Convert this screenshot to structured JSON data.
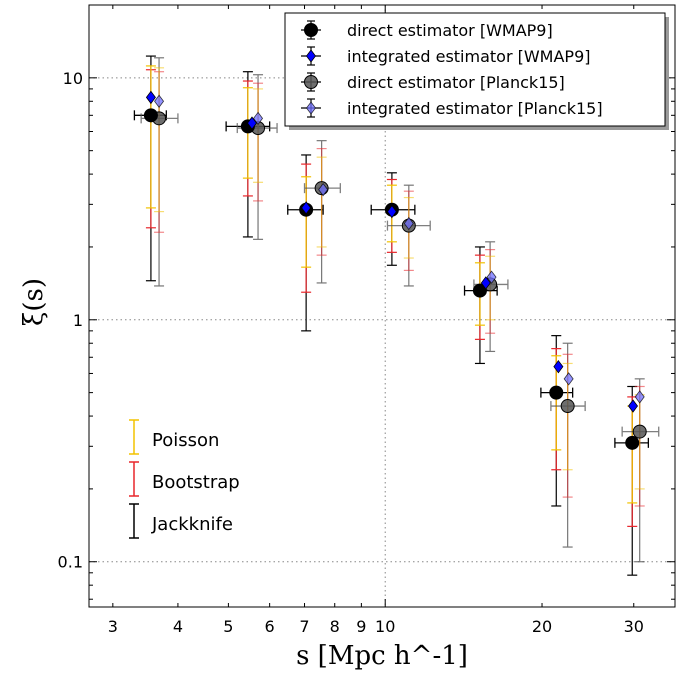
{
  "chart_data": {
    "type": "scatter",
    "title": "",
    "xlabel": "s [Mpc h^-1]",
    "ylabel": "ξ(s)",
    "x_scale": "log",
    "y_scale": "log",
    "xlim": [
      2.7,
      36
    ],
    "ylim": [
      0.065,
      20
    ],
    "x_ticks": [
      3,
      4,
      5,
      6,
      7,
      8,
      9,
      10,
      20,
      30
    ],
    "x_tick_labels": [
      "3",
      "4",
      "5",
      "6",
      "7",
      "8",
      "9",
      "10",
      "20",
      "30"
    ],
    "y_ticks": [
      0.1,
      1,
      10
    ],
    "y_tick_labels": [
      "0.1",
      "1",
      "10"
    ],
    "grid": "dotted at major ticks",
    "legend_position": "top-right",
    "series": [
      {
        "name": "direct estimator [WMAP9]",
        "marker": "circle",
        "color": "#000000",
        "alpha": 1.0,
        "points": [
          {
            "x": 3.55,
            "y": 7.0,
            "xerr": [
              3.3,
              3.8
            ],
            "poisson": [
              2.9,
              11.2
            ],
            "bootstrap": [
              2.4,
              10.8
            ],
            "jackknife": [
              1.45,
              12.3
            ]
          },
          {
            "x": 5.45,
            "y": 6.3,
            "xerr": [
              4.95,
              6.0
            ],
            "poisson": [
              3.85,
              9.1
            ],
            "bootstrap": [
              3.25,
              9.7
            ],
            "jackknife": [
              2.2,
              10.6
            ]
          },
          {
            "x": 7.05,
            "y": 2.85,
            "xerr": [
              6.5,
              7.6
            ],
            "poisson": [
              1.65,
              3.9
            ],
            "bootstrap": [
              1.3,
              4.4
            ],
            "jackknife": [
              0.9,
              4.8
            ]
          },
          {
            "x": 10.3,
            "y": 2.85,
            "xerr": [
              9.4,
              11.4
            ],
            "poisson": [
              2.1,
              3.6
            ],
            "bootstrap": [
              1.9,
              3.8
            ],
            "jackknife": [
              1.68,
              4.05
            ]
          },
          {
            "x": 15.2,
            "y": 1.32,
            "xerr": [
              14.2,
              16.4
            ],
            "poisson": [
              0.95,
              1.72
            ],
            "bootstrap": [
              0.83,
              1.85
            ],
            "jackknife": [
              0.66,
              2.0
            ]
          },
          {
            "x": 21.3,
            "y": 0.5,
            "xerr": [
              19.9,
              22.9
            ],
            "poisson": [
              0.29,
              0.71
            ],
            "bootstrap": [
              0.24,
              0.76
            ],
            "jackknife": [
              0.17,
              0.86
            ]
          },
          {
            "x": 29.8,
            "y": 0.31,
            "xerr": [
              27.6,
              32.0
            ],
            "poisson": [
              0.175,
              0.44
            ],
            "bootstrap": [
              0.14,
              0.48
            ],
            "jackknife": [
              0.088,
              0.53
            ]
          }
        ]
      },
      {
        "name": "integrated estimator [WMAP9]",
        "marker": "diamond",
        "color": "#0000ff",
        "alpha": 1.0,
        "points": [
          {
            "x": 3.55,
            "y": 8.3,
            "xerr": null,
            "poisson": null,
            "bootstrap": null,
            "jackknife": null
          },
          {
            "x": 5.55,
            "y": 6.5,
            "xerr": null,
            "poisson": null,
            "bootstrap": null,
            "jackknife": null
          },
          {
            "x": 7.05,
            "y": 2.9,
            "xerr": null,
            "poisson": null,
            "bootstrap": null,
            "jackknife": null
          },
          {
            "x": 10.3,
            "y": 2.8,
            "xerr": null,
            "poisson": null,
            "bootstrap": null,
            "jackknife": null
          },
          {
            "x": 15.6,
            "y": 1.42,
            "xerr": null,
            "poisson": null,
            "bootstrap": null,
            "jackknife": null
          },
          {
            "x": 21.5,
            "y": 0.64,
            "xerr": null,
            "poisson": null,
            "bootstrap": null,
            "jackknife": null
          },
          {
            "x": 29.9,
            "y": 0.44,
            "xerr": null,
            "poisson": null,
            "bootstrap": null,
            "jackknife": null
          }
        ]
      },
      {
        "name": "direct estimator [Planck15]",
        "marker": "circle",
        "color": "#555555",
        "alpha": 0.85,
        "points": [
          {
            "x": 3.68,
            "y": 6.8,
            "xerr": [
              3.4,
              4.0
            ],
            "poisson": [
              2.8,
              11.0
            ],
            "bootstrap": [
              2.3,
              10.6
            ],
            "jackknife": [
              1.38,
              12.1
            ]
          },
          {
            "x": 5.7,
            "y": 6.2,
            "xerr": [
              5.2,
              6.2
            ],
            "poisson": [
              3.7,
              9.0
            ],
            "bootstrap": [
              3.1,
              9.5
            ],
            "jackknife": [
              2.15,
              10.3
            ]
          },
          {
            "x": 7.55,
            "y": 3.5,
            "xerr": [
              7.0,
              8.2
            ],
            "poisson": [
              2.0,
              4.7
            ],
            "bootstrap": [
              1.85,
              5.1
            ],
            "jackknife": [
              1.42,
              5.5
            ]
          },
          {
            "x": 11.1,
            "y": 2.45,
            "xerr": [
              10.1,
              12.2
            ],
            "poisson": [
              1.8,
              3.2
            ],
            "bootstrap": [
              1.6,
              3.4
            ],
            "jackknife": [
              1.38,
              3.6
            ]
          },
          {
            "x": 15.9,
            "y": 1.4,
            "xerr": [
              14.8,
              17.2
            ],
            "poisson": [
              1.0,
              1.83
            ],
            "bootstrap": [
              0.88,
              1.95
            ],
            "jackknife": [
              0.74,
              2.1
            ]
          },
          {
            "x": 22.4,
            "y": 0.44,
            "xerr": [
              20.8,
              24.2
            ],
            "poisson": [
              0.24,
              0.66
            ],
            "bootstrap": [
              0.185,
              0.72
            ],
            "jackknife": [
              0.115,
              0.8
            ]
          },
          {
            "x": 30.8,
            "y": 0.345,
            "xerr": [
              28.5,
              33.5
            ],
            "poisson": [
              0.2,
              0.49
            ],
            "bootstrap": [
              0.17,
              0.53
            ],
            "jackknife": [
              0.1,
              0.57
            ]
          }
        ]
      },
      {
        "name": "integrated estimator [Planck15]",
        "marker": "diamond",
        "color": "#6f6fff",
        "alpha": 0.75,
        "points": [
          {
            "x": 3.68,
            "y": 8.0,
            "xerr": null,
            "poisson": null,
            "bootstrap": null,
            "jackknife": null
          },
          {
            "x": 5.7,
            "y": 6.8,
            "xerr": null,
            "poisson": null,
            "bootstrap": null,
            "jackknife": null
          },
          {
            "x": 7.6,
            "y": 3.45,
            "xerr": null,
            "poisson": null,
            "bootstrap": null,
            "jackknife": null
          },
          {
            "x": 11.1,
            "y": 2.5,
            "xerr": null,
            "poisson": null,
            "bootstrap": null,
            "jackknife": null
          },
          {
            "x": 16.0,
            "y": 1.5,
            "xerr": null,
            "poisson": null,
            "bootstrap": null,
            "jackknife": null
          },
          {
            "x": 22.5,
            "y": 0.57,
            "xerr": null,
            "poisson": null,
            "bootstrap": null,
            "jackknife": null
          },
          {
            "x": 30.8,
            "y": 0.48,
            "xerr": null,
            "poisson": null,
            "bootstrap": null,
            "jackknife": null
          }
        ]
      }
    ],
    "error_legend": [
      {
        "name": "Poisson",
        "color": "#f2c200"
      },
      {
        "name": "Bootstrap",
        "color": "#e8262b"
      },
      {
        "name": "Jackknife",
        "color": "#000000"
      }
    ]
  }
}
